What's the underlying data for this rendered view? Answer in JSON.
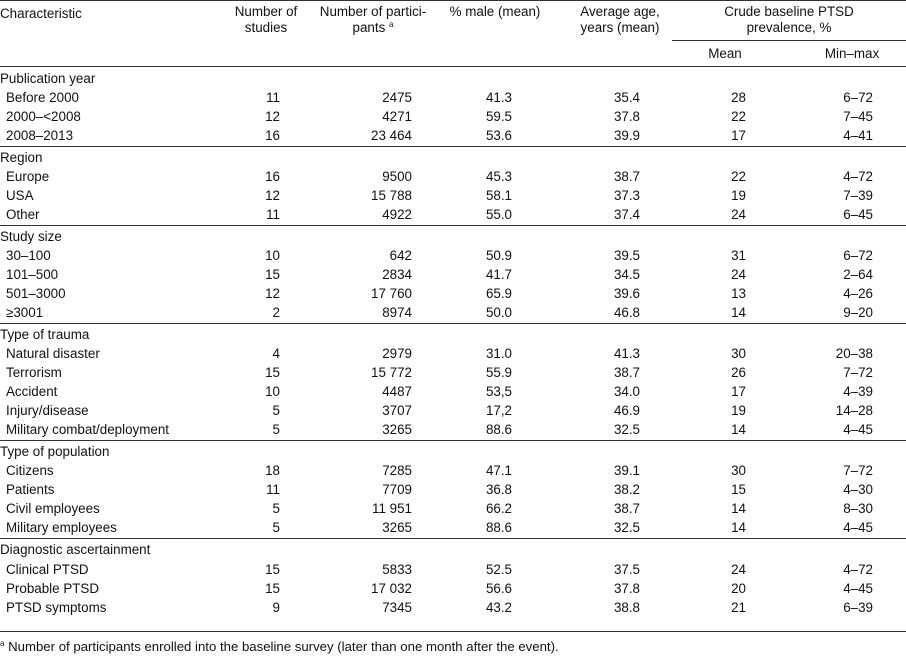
{
  "headers": {
    "characteristic": "Characteristic",
    "studies": "Number of studies",
    "participants": "Number of partici-pants",
    "participants_line1": "Number of partici-",
    "participants_line2": "pants",
    "participants_mark": "a",
    "male": "% male (mean)",
    "age_line1": "Average age,",
    "age_line2": "years (mean)",
    "ptsd_line1": "Crude baseline PTSD",
    "ptsd_line2": "prevalence, %",
    "mean": "Mean",
    "minmax": "Min–max"
  },
  "groups": [
    {
      "title": "Publication year",
      "rows": [
        {
          "label": "Before 2000",
          "studies": "11",
          "participants": "2475",
          "male": "41.3",
          "age": "35.4",
          "mean": "28",
          "minmax": "6–72"
        },
        {
          "label": "2000–<2008",
          "studies": "12",
          "participants": "4271",
          "male": "59.5",
          "age": "37.8",
          "mean": "22",
          "minmax": "7–45"
        },
        {
          "label": "2008–2013",
          "studies": "16",
          "participants": "23 464",
          "male": "53.6",
          "age": "39.9",
          "mean": "17",
          "minmax": "4–41"
        }
      ]
    },
    {
      "title": "Region",
      "rows": [
        {
          "label": "Europe",
          "studies": "16",
          "participants": "9500",
          "male": "45.3",
          "age": "38.7",
          "mean": "22",
          "minmax": "4–72"
        },
        {
          "label": "USA",
          "studies": "12",
          "participants": "15 788",
          "male": "58.1",
          "age": "37.3",
          "mean": "19",
          "minmax": "7–39"
        },
        {
          "label": "Other",
          "studies": "11",
          "participants": "4922",
          "male": "55.0",
          "age": "37.4",
          "mean": "24",
          "minmax": "6–45"
        }
      ]
    },
    {
      "title": "Study size",
      "rows": [
        {
          "label": "30–100",
          "studies": "10",
          "participants": "642",
          "male": "50.9",
          "age": "39.5",
          "mean": "31",
          "minmax": "6–72"
        },
        {
          "label": "101–500",
          "studies": "15",
          "participants": "2834",
          "male": "41.7",
          "age": "34.5",
          "mean": "24",
          "minmax": "2–64"
        },
        {
          "label": "501–3000",
          "studies": "12",
          "participants": "17 760",
          "male": "65.9",
          "age": "39.6",
          "mean": "13",
          "minmax": "4–26"
        },
        {
          "label": "≥3001",
          "studies": "2",
          "participants": "8974",
          "male": "50.0",
          "age": "46.8",
          "mean": "14",
          "minmax": "9–20"
        }
      ]
    },
    {
      "title": "Type of trauma",
      "rows": [
        {
          "label": "Natural disaster",
          "studies": "4",
          "participants": "2979",
          "male": "31.0",
          "age": "41.3",
          "mean": "30",
          "minmax": "20–38"
        },
        {
          "label": "Terrorism",
          "studies": "15",
          "participants": "15 772",
          "male": "55.9",
          "age": "38.7",
          "mean": "26",
          "minmax": "7–72"
        },
        {
          "label": "Accident",
          "studies": "10",
          "participants": "4487",
          "male": "53,5",
          "age": "34.0",
          "mean": "17",
          "minmax": "4–39"
        },
        {
          "label": "Injury/disease",
          "studies": "5",
          "participants": "3707",
          "male": "17,2",
          "age": "46.9",
          "mean": "19",
          "minmax": "14–28"
        },
        {
          "label": "Military combat/deployment",
          "studies": "5",
          "participants": "3265",
          "male": "88.6",
          "age": "32.5",
          "mean": "14",
          "minmax": "4–45"
        }
      ]
    },
    {
      "title": "Type of population",
      "rows": [
        {
          "label": "Citizens",
          "studies": "18",
          "participants": "7285",
          "male": "47.1",
          "age": "39.1",
          "mean": "30",
          "minmax": "7–72"
        },
        {
          "label": "Patients",
          "studies": "11",
          "participants": "7709",
          "male": "36.8",
          "age": "38.2",
          "mean": "15",
          "minmax": "4–30"
        },
        {
          "label": "Civil employees",
          "studies": "5",
          "participants": "11 951",
          "male": "66.2",
          "age": "38.7",
          "mean": "14",
          "minmax": "8–30"
        },
        {
          "label": "Military employees",
          "studies": "5",
          "participants": "3265",
          "male": "88.6",
          "age": "32.5",
          "mean": "14",
          "minmax": "4–45"
        }
      ]
    },
    {
      "title": "Diagnostic ascertainment",
      "rows": [
        {
          "label": "Clinical PTSD",
          "studies": "15",
          "participants": "5833",
          "male": "52.5",
          "age": "37.5",
          "mean": "24",
          "minmax": "4–72"
        },
        {
          "label": "Probable PTSD",
          "studies": "15",
          "participants": "17 032",
          "male": "56.6",
          "age": "37.8",
          "mean": "20",
          "minmax": "4–45"
        },
        {
          "label": "PTSD symptoms",
          "studies": "9",
          "participants": "7345",
          "male": "43.2",
          "age": "38.8",
          "mean": "21",
          "minmax": "6–39"
        }
      ]
    }
  ],
  "footnote": {
    "mark": "a",
    "text": "Number of participants enrolled into the baseline survey (later than one month after the event)."
  }
}
